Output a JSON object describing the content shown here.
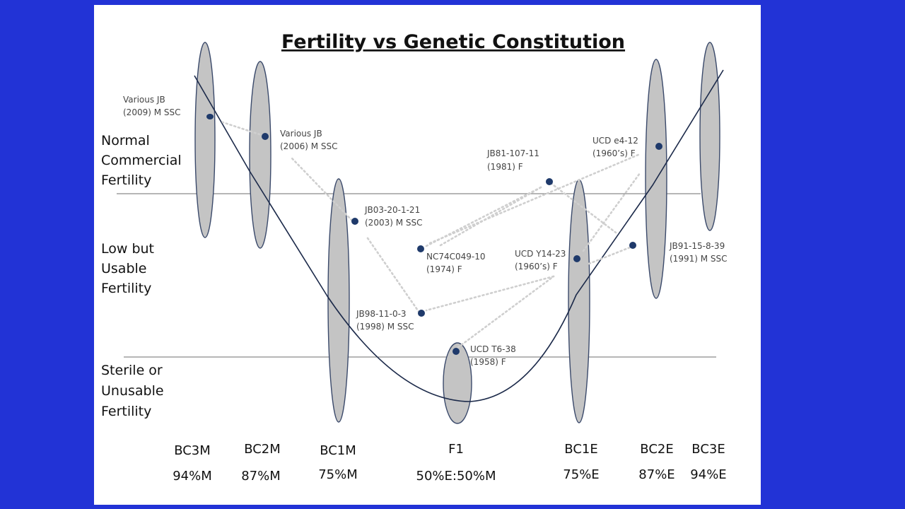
{
  "title": "Fertility vs Genetic Constitution",
  "fertility_levels": [
    {
      "lines": [
        "Normal",
        "Commercial",
        "Fertility"
      ]
    },
    {
      "lines": [
        "Low but",
        "Usable",
        "Fertility"
      ]
    },
    {
      "lines": [
        "Sterile or",
        "Unusable",
        "Fertility"
      ]
    }
  ],
  "generations": [
    {
      "label": "BC3M",
      "percent": "94%M"
    },
    {
      "label": "BC2M",
      "percent": "87%M"
    },
    {
      "label": "BC1M",
      "percent": "75%M"
    },
    {
      "label": "F1",
      "percent": "50%E:50%M"
    },
    {
      "label": "BC1E",
      "percent": "75%E"
    },
    {
      "label": "BC2E",
      "percent": "87%E"
    },
    {
      "label": "BC3E",
      "percent": "94%E"
    }
  ],
  "data_points": [
    {
      "name": "Various JB",
      "detail": "(2009) M SSC"
    },
    {
      "name": "Various  JB",
      "detail": "(2006) M SSC"
    },
    {
      "name": "JB03-20-1-21",
      "detail": "(2003) M SSC"
    },
    {
      "name": "NC74C049-10",
      "detail": "(1974) F"
    },
    {
      "name": "JB98-11-0-3",
      "detail": "(1998) M SSC"
    },
    {
      "name": "UCD T6-38",
      "detail": "(1958) F"
    },
    {
      "name": "UCD Y14-23",
      "detail": "(1960’s) F"
    },
    {
      "name": "JB81-107-11",
      "detail": "(1981) F"
    },
    {
      "name": "UCD e4-12",
      "detail": "(1960’s) F"
    },
    {
      "name": "JB91-15-8-39",
      "detail": "(1991) M SSC"
    }
  ],
  "colors": {
    "background": "#2233d6",
    "oval_fill": "#c4c4c4",
    "dot": "#1f3a6b",
    "arrow": "#cfcfcf"
  }
}
